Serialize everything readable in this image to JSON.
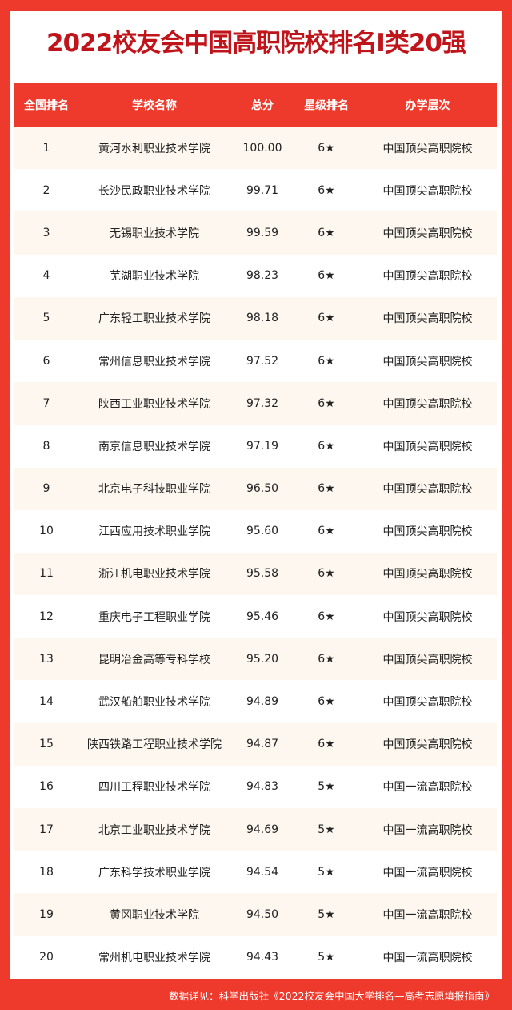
{
  "title": "2022校友会中国高职院校排名I类20强",
  "columns": [
    "全国排名",
    "学校名称",
    "总分",
    "星级排名",
    "办学层次"
  ],
  "rows": [
    [
      "1",
      "黄河水利职业技术学院",
      "100.00",
      "6★",
      "中国顶尖高职院校"
    ],
    [
      "2",
      "长沙民政职业技术学院",
      "99.71",
      "6★",
      "中国顶尖高职院校"
    ],
    [
      "3",
      "无锡职业技术学院",
      "99.59",
      "6★",
      "中国顶尖高职院校"
    ],
    [
      "4",
      "芜湖职业技术学院",
      "98.23",
      "6★",
      "中国顶尖高职院校"
    ],
    [
      "5",
      "广东轻工职业技术学院",
      "98.18",
      "6★",
      "中国顶尖高职院校"
    ],
    [
      "6",
      "常州信息职业技术学院",
      "97.52",
      "6★",
      "中国顶尖高职院校"
    ],
    [
      "7",
      "陕西工业职业技术学院",
      "97.32",
      "6★",
      "中国顶尖高职院校"
    ],
    [
      "8",
      "南京信息职业技术学院",
      "97.19",
      "6★",
      "中国顶尖高职院校"
    ],
    [
      "9",
      "北京电子科技职业学院",
      "96.50",
      "6★",
      "中国顶尖高职院校"
    ],
    [
      "10",
      "江西应用技术职业学院",
      "95.60",
      "6★",
      "中国顶尖高职院校"
    ],
    [
      "11",
      "浙江机电职业技术学院",
      "95.58",
      "6★",
      "中国顶尖高职院校"
    ],
    [
      "12",
      "重庆电子工程职业学院",
      "95.46",
      "6★",
      "中国顶尖高职院校"
    ],
    [
      "13",
      "昆明冶金高等专科学校",
      "95.20",
      "6★",
      "中国顶尖高职院校"
    ],
    [
      "14",
      "武汉船舶职业技术学院",
      "94.89",
      "6★",
      "中国顶尖高职院校"
    ],
    [
      "15",
      "陕西铁路工程职业技术学院",
      "94.87",
      "6★",
      "中国顶尖高职院校"
    ],
    [
      "16",
      "四川工程职业技术学院",
      "94.83",
      "5★",
      "中国一流高职院校"
    ],
    [
      "17",
      "北京工业职业技术学院",
      "94.69",
      "5★",
      "中国一流高职院校"
    ],
    [
      "18",
      "广东科学技术职业学院",
      "94.54",
      "5★",
      "中国一流高职院校"
    ],
    [
      "19",
      "黄冈职业技术学院",
      "94.50",
      "5★",
      "中国一流高职院校"
    ],
    [
      "20",
      "常州机电职业技术学院",
      "94.43",
      "5★",
      "中国一流高职院校"
    ]
  ],
  "footer": "数据详见：科学出版社《2022校友会中国大学排名—高考志愿填报指南》",
  "colors": {
    "accent": "#ee3a2c",
    "title": "#c0141b",
    "stripe": "#fdf7ef"
  }
}
